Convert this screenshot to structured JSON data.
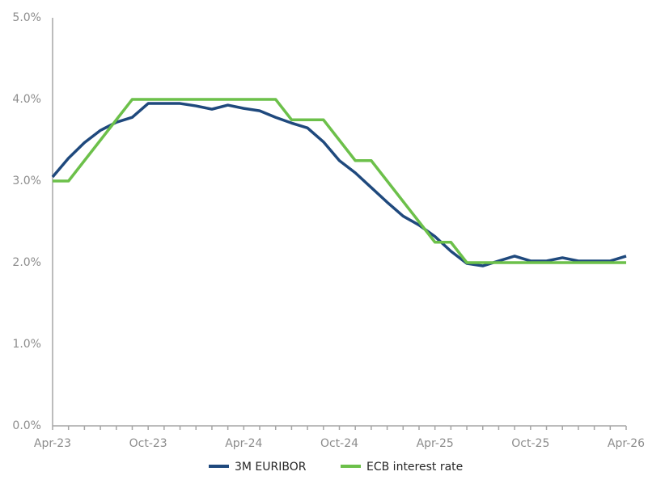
{
  "chart_data": {
    "type": "line",
    "categories": [
      "Apr-23",
      null,
      null,
      null,
      null,
      null,
      "Oct-23",
      null,
      null,
      null,
      null,
      null,
      "Apr-24",
      null,
      null,
      null,
      null,
      null,
      "Oct-24",
      null,
      null,
      null,
      null,
      null,
      "Apr-25",
      null,
      null,
      null,
      null,
      null,
      "Oct-25",
      null,
      null,
      null,
      null,
      null,
      "Apr-26"
    ],
    "series": [
      {
        "name": "3M EURIBOR",
        "color": "#1f497d",
        "values": [
          3.05,
          3.28,
          3.47,
          3.62,
          3.72,
          3.78,
          3.95,
          3.95,
          3.95,
          3.92,
          3.88,
          3.93,
          3.89,
          3.86,
          3.78,
          3.71,
          3.65,
          3.48,
          3.25,
          3.1,
          2.92,
          2.74,
          2.57,
          2.46,
          2.32,
          2.14,
          1.99,
          1.96,
          2.02,
          2.08,
          2.02,
          2.02,
          2.06,
          2.02,
          2.02,
          2.02,
          2.08
        ]
      },
      {
        "name": "ECB interest rate",
        "color": "#6cc04a",
        "values": [
          3.0,
          3.0,
          3.25,
          3.5,
          3.75,
          4.0,
          4.0,
          4.0,
          4.0,
          4.0,
          4.0,
          4.0,
          4.0,
          4.0,
          4.0,
          3.75,
          3.75,
          3.75,
          3.5,
          3.25,
          3.25,
          3.0,
          2.75,
          2.5,
          2.25,
          2.25,
          2.0,
          2.0,
          2.0,
          2.0,
          2.0,
          2.0,
          2.0,
          2.0,
          2.0,
          2.0,
          2.0
        ]
      }
    ],
    "ylim": [
      0,
      5
    ],
    "yticks": [
      {
        "value": 0,
        "label": "0.0%"
      },
      {
        "value": 1,
        "label": "1.0%"
      },
      {
        "value": 2,
        "label": "2.0%"
      },
      {
        "value": 3,
        "label": "3.0%"
      },
      {
        "value": 4,
        "label": "4.0%"
      },
      {
        "value": 5,
        "label": "5.0%"
      }
    ],
    "grid": false,
    "legend": "bottom"
  }
}
